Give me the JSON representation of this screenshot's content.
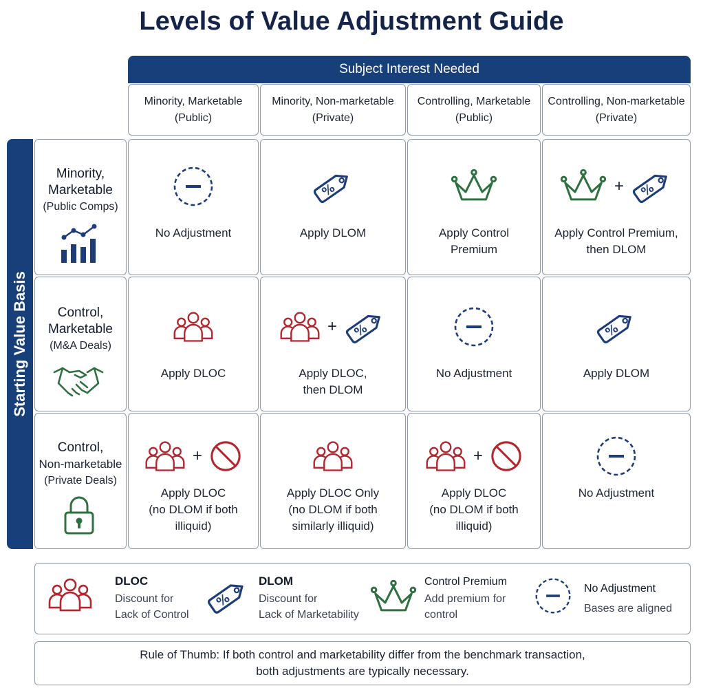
{
  "title": "Levels of Value Adjustment Guide",
  "header_bar": "Subject Interest Needed",
  "side_bar": "Starting Value Basis",
  "columns": [
    {
      "line1": "Minority, Marketable",
      "line2": "(Public)"
    },
    {
      "line1": "Minority, Non-marketable",
      "line2": "(Private)"
    },
    {
      "line1": "Controlling, Marketable",
      "line2": "(Public)"
    },
    {
      "line1": "Controlling, Non-marketable",
      "line2": "(Private)"
    }
  ],
  "rows": [
    {
      "line1": "Minority,",
      "line2": "Marketable",
      "line3": "(Public Comps)",
      "icon": "bar-chart-icon"
    },
    {
      "line1": "Control,",
      "line2": "Marketable",
      "line3": "(M&A Deals)",
      "icon": "handshake-icon"
    },
    {
      "line1": "Control,",
      "line2": "Non-marketable",
      "line3": "(Private Deals)",
      "icon": "lock-icon"
    }
  ],
  "cells": [
    [
      {
        "icons": [
          "no-adjustment"
        ],
        "lines": [
          "No Adjustment"
        ]
      },
      {
        "icons": [
          "dlom"
        ],
        "lines": [
          "Apply DLOM"
        ]
      },
      {
        "icons": [
          "control-premium"
        ],
        "lines": [
          "Apply Control",
          "Premium"
        ]
      },
      {
        "icons": [
          "control-premium",
          "dlom"
        ],
        "lines": [
          "Apply Control Premium,",
          "then DLOM"
        ]
      }
    ],
    [
      {
        "icons": [
          "dloc"
        ],
        "lines": [
          "Apply DLOC"
        ]
      },
      {
        "icons": [
          "dloc",
          "dlom"
        ],
        "lines": [
          "Apply DLOC,",
          "then DLOM"
        ]
      },
      {
        "icons": [
          "no-adjustment"
        ],
        "lines": [
          "No Adjustment"
        ]
      },
      {
        "icons": [
          "dlom"
        ],
        "lines": [
          "Apply DLOM"
        ]
      }
    ],
    [
      {
        "icons": [
          "dloc",
          "prohibited"
        ],
        "lines": [
          "Apply DLOC",
          "(no DLOM if both",
          "illiquid)"
        ]
      },
      {
        "icons": [
          "dloc"
        ],
        "lines": [
          "Apply DLOC Only",
          "(no DLOM if both",
          "similarly illiquid)"
        ]
      },
      {
        "icons": [
          "dloc",
          "prohibited"
        ],
        "lines": [
          "Apply DLOC",
          "(no DLOM if both",
          "illiquid)"
        ]
      },
      {
        "icons": [
          "no-adjustment"
        ],
        "lines": [
          "No Adjustment"
        ]
      }
    ]
  ],
  "plus_sign": "+",
  "legend": [
    {
      "icon": "dloc",
      "title": "DLOC",
      "desc1": "Discount for",
      "desc2": "Lack of Control"
    },
    {
      "icon": "dlom",
      "title": "DLOM",
      "desc1": "Discount for",
      "desc2": "Lack of Marketability"
    },
    {
      "icon": "control-premium",
      "title": "Control Premium",
      "desc1": "Add premium for",
      "desc2": "control"
    },
    {
      "icon": "no-adjustment",
      "title": "No Adjustment",
      "desc1": "Bases are aligned",
      "desc2": ""
    }
  ],
  "rule": {
    "line1": "Rule of Thumb: If both control and marketability differ from the benchmark transaction,",
    "line2": "both adjustments are typically necessary."
  },
  "colors": {
    "navy": "#17407a",
    "red": "#b3262d",
    "green": "#2f7040",
    "blue_icon": "#1d3c78",
    "border": "#8a97ab"
  }
}
